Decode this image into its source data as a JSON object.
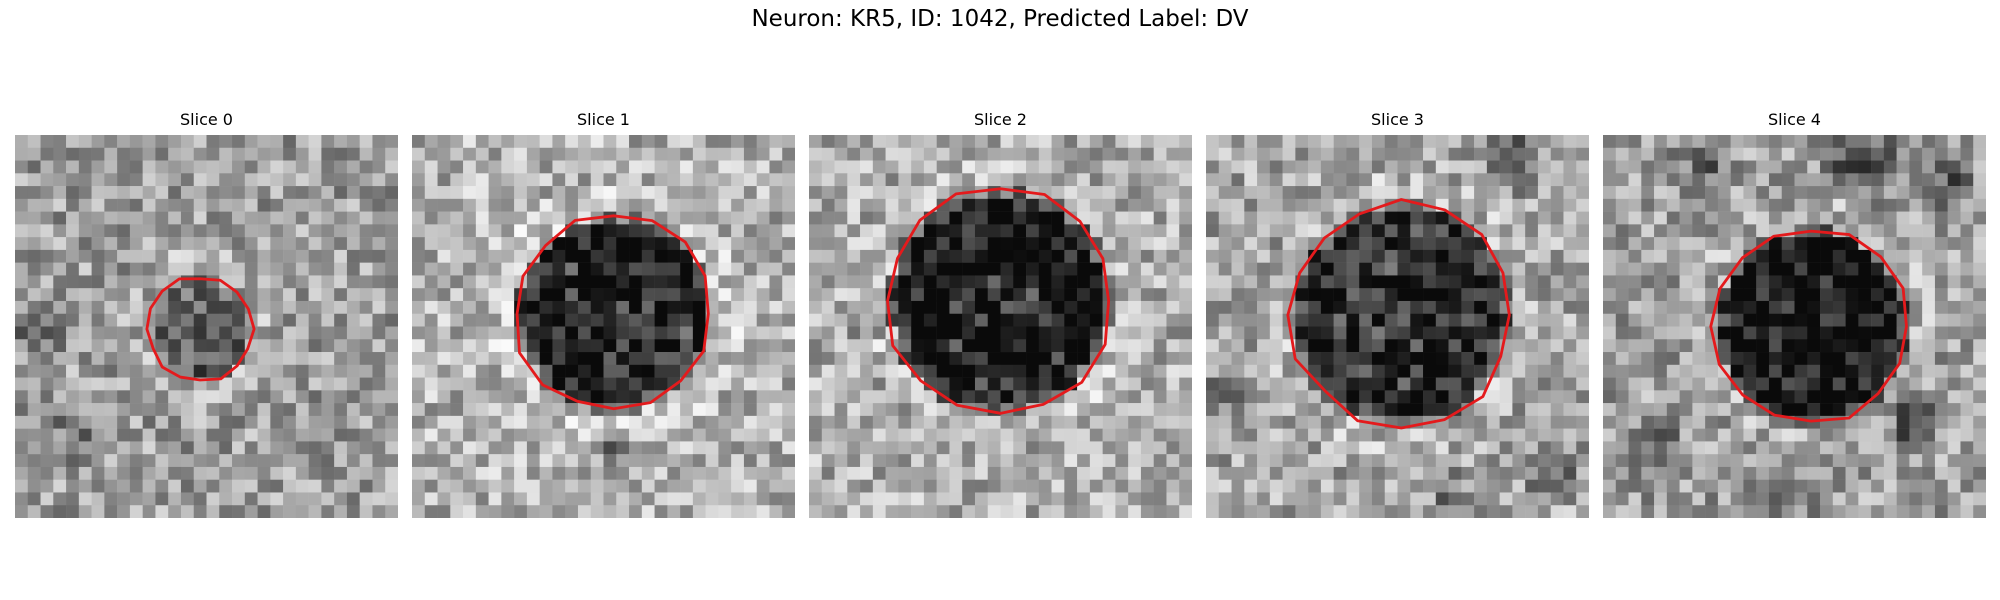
{
  "figure": {
    "title": "Neuron: KR5, ID: 1042, Predicted Label: DV"
  },
  "panels": [
    {
      "title": "Slice 0"
    },
    {
      "title": "Slice 1"
    },
    {
      "title": "Slice 2"
    },
    {
      "title": "Slice 3"
    },
    {
      "title": "Slice 4"
    }
  ],
  "colors": {
    "contour": "#e41a1c"
  }
}
